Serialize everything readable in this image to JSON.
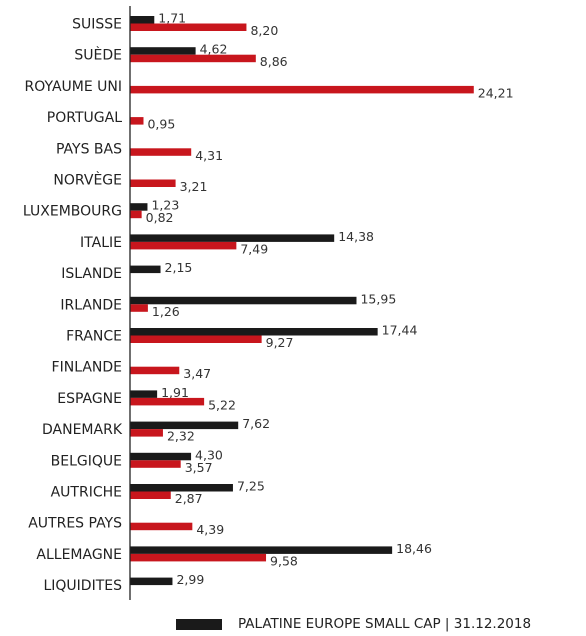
{
  "chart_data": {
    "type": "bar",
    "orientation": "horizontal",
    "categories": [
      "SUISSE",
      "SUÈDE",
      "ROYAUME UNI",
      "PORTUGAL",
      "PAYS BAS",
      "NORVÈGE",
      "LUXEMBOURG",
      "ITALIE",
      "ISLANDE",
      "IRLANDE",
      "FRANCE",
      "FINLANDE",
      "ESPAGNE",
      "DANEMARK",
      "BELGIQUE",
      "AUTRICHE",
      "AUTRES PAYS",
      "ALLEMAGNE",
      "LIQUIDITES"
    ],
    "series": [
      {
        "name": "PALATINE EUROPE SMALL CAP | 31.12.2018",
        "color": "#1a1a1a",
        "values": [
          1.71,
          4.62,
          null,
          null,
          null,
          null,
          1.23,
          14.38,
          2.15,
          15.95,
          17.44,
          null,
          1.91,
          7.62,
          4.3,
          7.25,
          null,
          18.46,
          2.99
        ],
        "labels": [
          "1,71",
          "4,62",
          "",
          "",
          "",
          "",
          "1,23",
          "14,38",
          "2,15",
          "15,95",
          "17,44",
          "",
          "1,91",
          "7,62",
          "4,30",
          "7,25",
          "",
          "18,46",
          "2,99"
        ]
      },
      {
        "color": "#c8161d",
        "values": [
          8.2,
          8.86,
          24.21,
          0.95,
          4.31,
          3.21,
          0.82,
          7.49,
          null,
          1.26,
          9.27,
          3.47,
          5.22,
          2.32,
          3.57,
          2.87,
          4.39,
          9.58,
          null
        ],
        "labels": [
          "8,20",
          "8,86",
          "24,21",
          "0,95",
          "4,31",
          "3,21",
          "0,82",
          "7,49",
          "",
          "1,26",
          "9,27",
          "3,47",
          "5,22",
          "2,32",
          "3,57",
          "2,87",
          "4,39",
          "9,58",
          ""
        ]
      }
    ],
    "xlim": [
      0,
      25
    ],
    "grid": false,
    "legend": "bottom"
  }
}
